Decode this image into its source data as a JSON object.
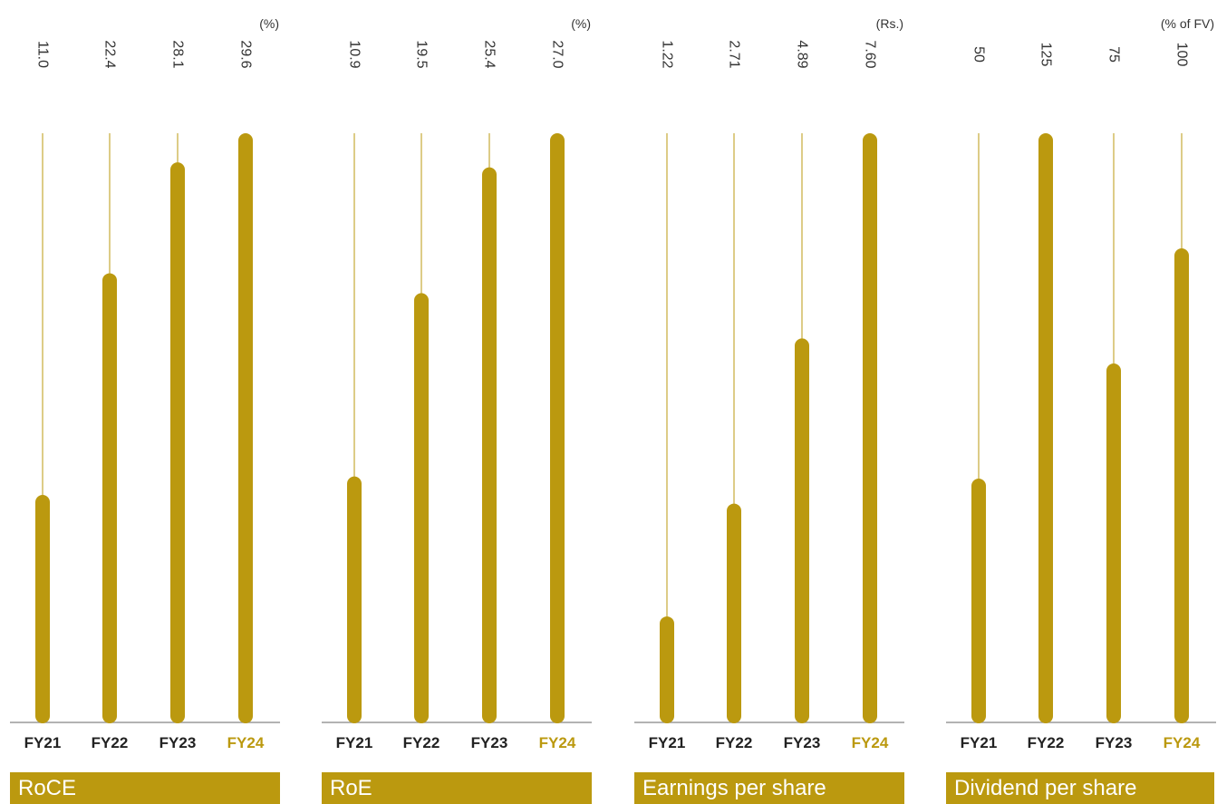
{
  "colors": {
    "bar": "#bb990f",
    "axis": "#9a9a9a",
    "text": "#222222",
    "highlight": "#bb990f"
  },
  "chart_data": [
    {
      "type": "bar",
      "title": "RoCE",
      "unit": "(%)",
      "categories": [
        "FY21",
        "FY22",
        "FY23",
        "FY24"
      ],
      "values": [
        11.0,
        22.4,
        28.1,
        29.6
      ],
      "value_labels": [
        "11.0",
        "22.4",
        "28.1",
        "29.6"
      ],
      "highlight_category": "FY24"
    },
    {
      "type": "bar",
      "title": "RoE",
      "unit": "(%)",
      "categories": [
        "FY21",
        "FY22",
        "FY23",
        "FY24"
      ],
      "values": [
        10.9,
        19.5,
        25.4,
        27.0
      ],
      "value_labels": [
        "10.9",
        "19.5",
        "25.4",
        "27.0"
      ],
      "highlight_category": "FY24"
    },
    {
      "type": "bar",
      "title": "Earnings per share",
      "unit": "(Rs.)",
      "categories": [
        "FY21",
        "FY22",
        "FY23",
        "FY24"
      ],
      "values": [
        1.22,
        2.71,
        4.89,
        7.6
      ],
      "value_labels": [
        "1.22",
        "2.71",
        "4.89",
        "7.60"
      ],
      "highlight_category": "FY24"
    },
    {
      "type": "bar",
      "title": "Dividend per share",
      "unit": "(% of FV)",
      "categories": [
        "FY21",
        "FY22",
        "FY23",
        "FY24"
      ],
      "values": [
        50,
        125,
        75,
        100
      ],
      "value_labels": [
        "50",
        "125",
        "75",
        "100"
      ],
      "highlight_category": "FY24"
    }
  ]
}
